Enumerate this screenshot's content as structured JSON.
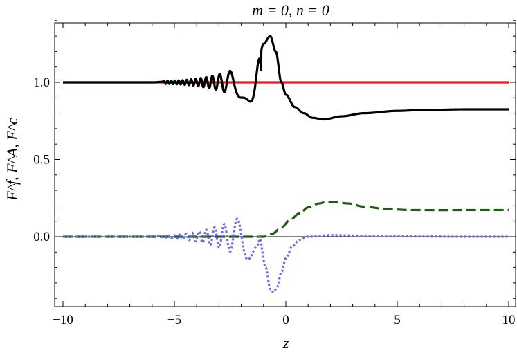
{
  "chart_data": {
    "type": "line",
    "title": "m = 0,  n = 0",
    "xlabel": "z",
    "ylabel": "F^f, F^A, F^c",
    "xlim": [
      -10,
      10
    ],
    "ylim": [
      -0.43,
      1.43
    ],
    "grid": false,
    "legend": "none",
    "x_ticks": [
      -10,
      -5,
      0,
      5,
      10
    ],
    "x_tick_labels": [
      "−10",
      "−5",
      "0",
      "5",
      "10"
    ],
    "y_ticks": [
      0.0,
      0.5,
      1.0
    ],
    "y_tick_labels": [
      "0.0",
      "0.5",
      "1.0"
    ],
    "series": [
      {
        "color": "#e31a1c",
        "style": "solid",
        "x": [
          -10,
          10
        ],
        "y": [
          1.0,
          1.0
        ]
      },
      {
        "color": "#000000",
        "style": "solid",
        "x": [
          -10,
          -6,
          -5,
          -4.5,
          -4,
          -3.5,
          -3,
          -2.6,
          -2.2,
          -1.9,
          -1.6,
          -1.3,
          -1.0,
          -0.7,
          -0.45,
          -0.2,
          0.0,
          0.4,
          0.8,
          1.2,
          1.7,
          2.5,
          3.5,
          5,
          6,
          8,
          10
        ],
        "y": [
          1.0,
          1.0,
          1.01,
          1.015,
          1.02,
          1.03,
          1.04,
          1.07,
          1.08,
          1.12,
          1.12,
          1.08,
          1.25,
          1.3,
          1.2,
          1.0,
          0.92,
          0.84,
          0.8,
          0.77,
          0.76,
          0.78,
          0.8,
          0.815,
          0.82,
          0.825,
          0.825
        ],
        "oscillation": {
          "from_x": -5.5,
          "to_x": -1.1,
          "center": 1.0,
          "amplitude_start": 0.01,
          "amplitude_end": 0.16,
          "frequency_start": 6.5,
          "frequency_end": 2.2
        }
      },
      {
        "color": "#1e5b14",
        "style": "dashed",
        "x": [
          -10,
          -2,
          -1.0,
          -0.6,
          -0.2,
          0.2,
          0.6,
          1.0,
          1.5,
          1.8,
          2.2,
          2.8,
          3.5,
          4.5,
          5.5,
          7,
          8.5,
          10
        ],
        "y": [
          0.0,
          0.0,
          0.0,
          0.02,
          0.06,
          0.11,
          0.15,
          0.19,
          0.215,
          0.225,
          0.225,
          0.215,
          0.195,
          0.18,
          0.173,
          0.172,
          0.173,
          0.173
        ]
      },
      {
        "color": "#6b6bea",
        "style": "dotted",
        "x": [
          -10,
          -6,
          -1.2,
          -0.9,
          -0.7,
          -0.55,
          -0.4,
          -0.2,
          0.0,
          0.3,
          0.6,
          1.0,
          2,
          4,
          6,
          8,
          10
        ],
        "y": [
          0.0,
          0.0,
          0.0,
          -0.2,
          -0.34,
          -0.36,
          -0.33,
          -0.23,
          -0.14,
          -0.06,
          -0.02,
          0.0,
          0.01,
          0.005,
          0.002,
          0.0,
          0.0
        ],
        "oscillation": {
          "from_x": -6.0,
          "to_x": -1.2,
          "center": 0.0,
          "amplitude_start": 0.004,
          "amplitude_end": 0.19,
          "frequency_start": 4.5,
          "frequency_end": 2.0,
          "envelope": true
        }
      }
    ]
  }
}
